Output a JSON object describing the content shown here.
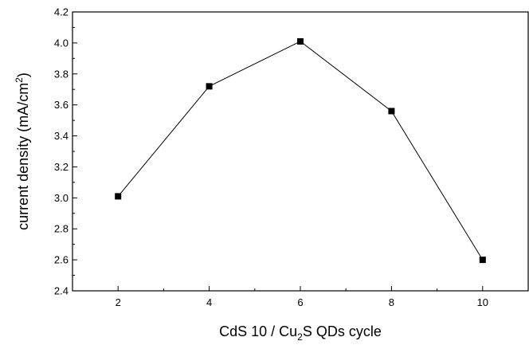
{
  "chart_data": {
    "type": "line",
    "title": "",
    "xlabel": {
      "parts": [
        {
          "text": "CdS 10 / Cu",
          "sub": false
        },
        {
          "text": "2",
          "sub": true
        },
        {
          "text": "S QDs cycle",
          "sub": false
        }
      ]
    },
    "ylabel": {
      "parts": [
        {
          "text": "current density (mA/cm",
          "sup": false
        },
        {
          "text": "2",
          "sup": true
        },
        {
          "text": ")",
          "sup": false
        }
      ]
    },
    "xlim": [
      1,
      11
    ],
    "ylim": [
      2.4,
      4.2
    ],
    "xticks": [
      "2",
      "4",
      "6",
      "8",
      "10"
    ],
    "yticks": [
      "2.4",
      "2.6",
      "2.8",
      "3.0",
      "3.2",
      "3.4",
      "3.6",
      "3.8",
      "4.0",
      "4.2"
    ],
    "series": [
      {
        "x": [
          2,
          4,
          6,
          8,
          10
        ],
        "y": [
          3.01,
          3.72,
          4.01,
          3.56,
          2.6
        ],
        "marker": "square",
        "color": "#000000"
      }
    ],
    "grid": false,
    "legend": "none"
  }
}
